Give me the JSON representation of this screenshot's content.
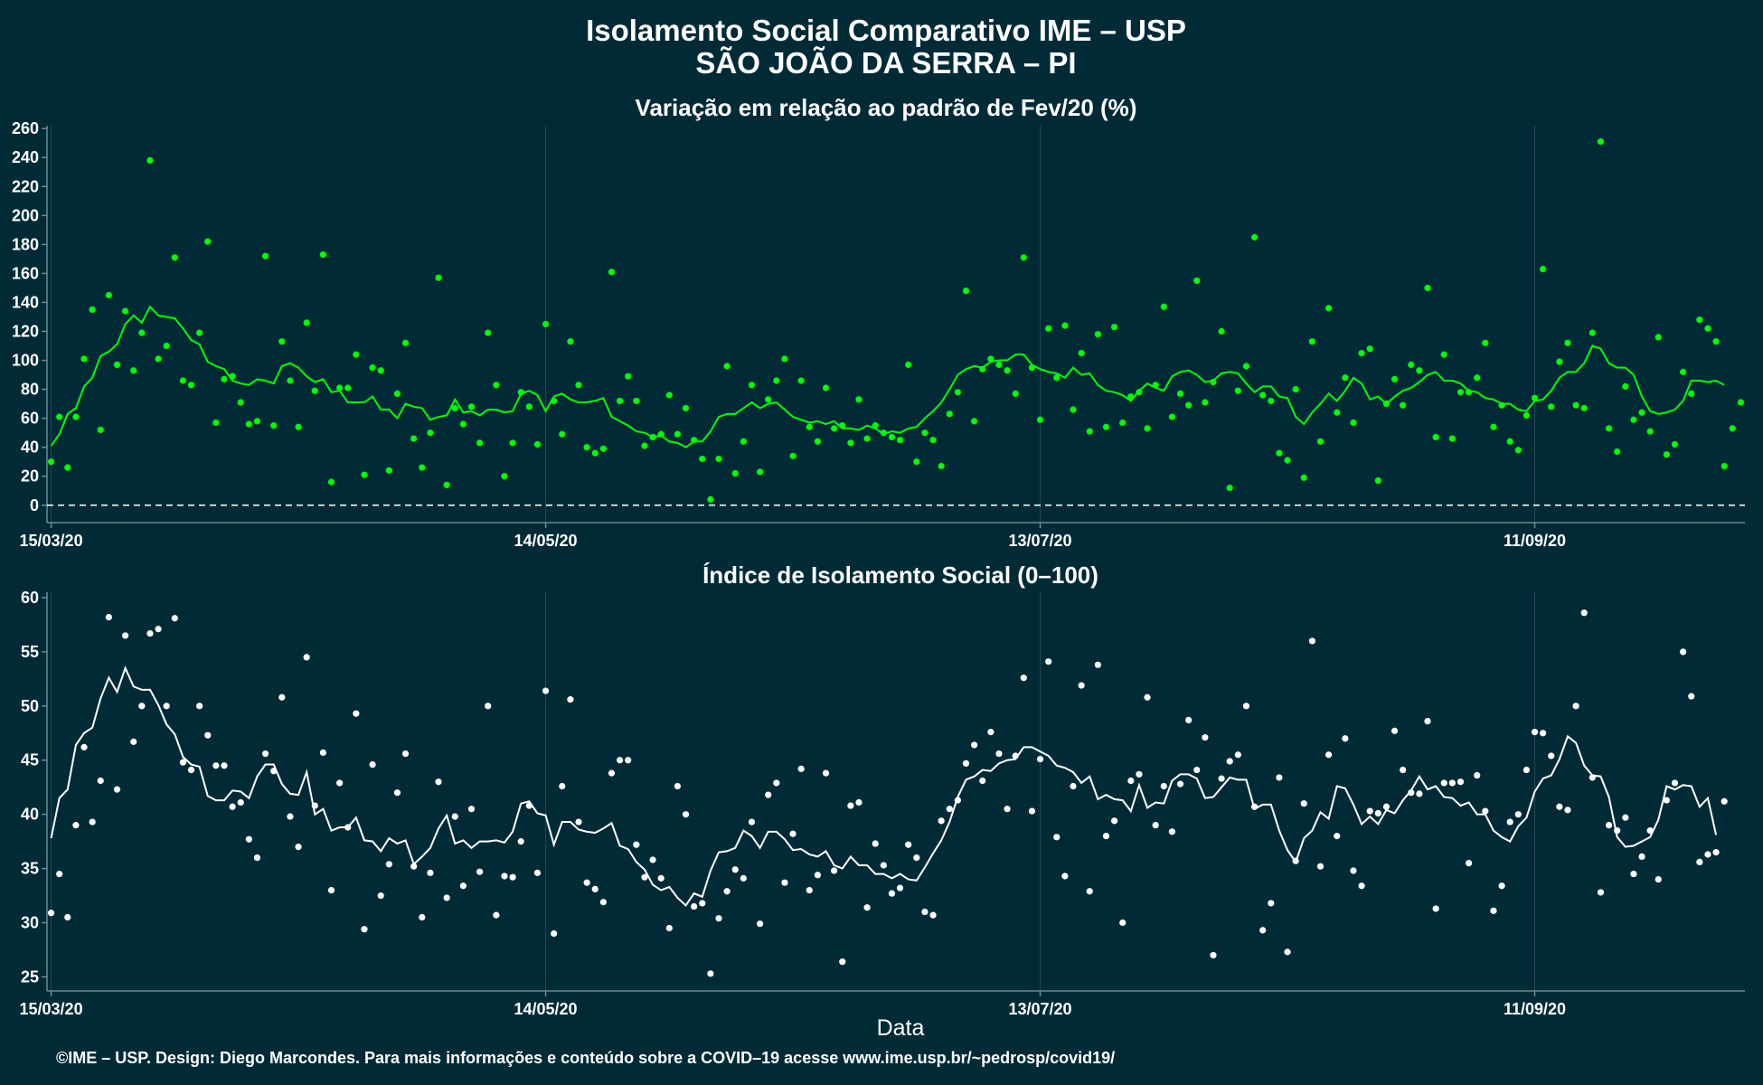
{
  "header": {
    "title_line1": "Isolamento Social Comparativo IME – USP",
    "title_line2": "SÃO JOÃO DA SERRA – PI"
  },
  "caption": "©IME – USP. Design: Diego Marcondes. Para mais informações e conteúdo sobre a COVID–19 acesse www.ime.usp.br/~pedrosp/covid19/",
  "colors": {
    "background": "#002b36",
    "panel1_series": "#00ff00",
    "panel2_series": "#ffffff",
    "axis": "#6a8a94"
  },
  "chart_data": [
    {
      "type": "scatter",
      "title": "Variação em relação ao padrão de Fev/20 (%)",
      "xlabel": "",
      "ylabel": "",
      "x_start_date": "15/03/20",
      "x_tick_labels": [
        "15/03/20",
        "14/05/20",
        "13/07/20",
        "11/09/20"
      ],
      "x_tick_days": [
        0,
        60,
        120,
        180
      ],
      "xlim_days": [
        -0.5,
        205.5
      ],
      "ylim": [
        -12,
        262
      ],
      "y_ticks": [
        0,
        20,
        40,
        60,
        80,
        100,
        120,
        140,
        160,
        180,
        200,
        220,
        240,
        260
      ],
      "reference_line": {
        "y": 0,
        "style": "dashed"
      },
      "series": [
        {
          "kind": "points",
          "values": [
            30,
            61,
            26,
            61,
            101,
            135,
            52,
            145,
            97,
            134,
            93,
            119,
            238,
            101,
            110,
            171,
            86,
            83,
            119,
            182,
            57,
            87,
            89,
            71,
            56,
            58,
            172,
            55,
            113,
            86,
            54,
            126,
            79,
            173,
            16,
            81,
            81,
            104,
            21,
            95,
            93,
            24,
            77,
            112,
            46,
            26,
            50,
            157,
            14,
            67,
            56,
            68,
            43,
            119,
            83,
            20,
            43,
            78,
            68,
            42,
            125,
            72,
            49,
            113,
            83,
            40,
            36,
            39,
            161,
            72,
            89,
            72,
            41,
            47,
            49,
            76,
            49,
            67,
            45,
            32,
            4,
            32,
            96,
            22,
            44,
            83,
            23,
            73,
            86,
            101,
            34,
            86,
            54,
            44,
            81,
            53,
            55,
            43,
            73,
            46,
            55,
            50,
            47,
            45,
            97,
            30,
            50,
            45,
            27,
            63,
            78,
            148,
            58,
            94,
            101,
            97,
            93,
            77,
            171,
            95,
            59,
            122,
            88,
            124,
            66,
            105,
            51,
            118,
            54,
            123,
            57,
            75,
            78,
            53,
            83,
            137,
            61,
            77,
            69,
            155,
            71,
            85,
            120,
            12,
            79,
            96,
            185,
            76,
            72,
            36,
            31,
            80,
            19,
            113,
            44,
            136,
            64,
            88,
            57,
            105,
            108,
            17,
            70,
            87,
            69,
            97,
            93,
            150,
            47,
            104,
            46,
            78,
            78,
            88,
            112,
            54,
            69,
            44,
            38,
            62,
            74,
            163,
            68,
            99,
            112,
            69,
            67,
            119,
            251,
            53,
            37,
            82,
            59,
            64,
            51,
            116,
            35,
            42,
            92,
            77,
            128,
            122,
            113,
            27,
            53,
            71
          ]
        },
        {
          "kind": "line",
          "values": [
            41,
            49,
            63,
            67,
            82,
            88,
            103,
            106,
            111,
            125,
            131,
            126,
            137,
            131,
            130,
            129,
            122,
            114,
            111,
            99,
            96,
            94,
            86,
            84,
            83,
            87,
            86,
            84,
            96,
            98,
            95,
            89,
            85,
            87,
            78,
            79,
            71,
            71,
            71,
            75,
            66,
            66,
            60,
            70,
            68,
            67,
            59,
            61,
            62,
            73,
            64,
            65,
            62,
            66,
            66,
            64,
            65,
            77,
            79,
            76,
            65,
            75,
            77,
            73,
            71,
            71,
            72,
            74,
            61,
            58,
            55,
            51,
            50,
            47,
            48,
            44,
            43,
            40,
            44,
            44,
            51,
            61,
            63,
            63,
            67,
            71,
            67,
            70,
            71,
            66,
            61,
            59,
            57,
            58,
            56,
            58,
            53,
            53,
            52,
            55,
            53,
            49,
            51,
            50,
            53,
            54,
            60,
            65,
            71,
            80,
            90,
            94,
            96,
            95,
            99,
            100,
            100,
            104,
            104,
            97,
            94,
            92,
            91,
            88,
            95,
            90,
            91,
            83,
            79,
            78,
            76,
            72,
            79,
            84,
            81,
            79,
            89,
            92,
            93,
            90,
            85,
            86,
            91,
            92,
            91,
            84,
            78,
            82,
            82,
            75,
            74,
            61,
            56,
            64,
            70,
            77,
            72,
            79,
            88,
            84,
            73,
            75,
            70,
            75,
            79,
            81,
            85,
            90,
            92,
            86,
            86,
            84,
            79,
            78,
            74,
            73,
            70,
            70,
            66,
            65,
            72,
            73,
            79,
            88,
            92,
            92,
            98,
            110,
            108,
            98,
            95,
            95,
            90,
            75,
            65,
            63,
            64,
            66,
            72,
            86,
            86,
            85,
            86,
            83
          ]
        }
      ]
    },
    {
      "type": "scatter",
      "title": "Índice de Isolamento Social (0–100)",
      "xlabel": "Data",
      "ylabel": "",
      "x_start_date": "15/03/20",
      "x_tick_labels": [
        "15/03/20",
        "14/05/20",
        "13/07/20",
        "11/09/20"
      ],
      "x_tick_days": [
        0,
        60,
        120,
        180
      ],
      "xlim_days": [
        -0.5,
        205.5
      ],
      "ylim": [
        23.7,
        60.5
      ],
      "y_ticks": [
        25,
        30,
        35,
        40,
        45,
        50,
        55,
        60
      ],
      "series": [
        {
          "kind": "points",
          "values": [
            30.9,
            34.5,
            30.5,
            39,
            46.2,
            39.3,
            43.1,
            58.2,
            42.3,
            56.5,
            46.7,
            50,
            56.7,
            57.1,
            50,
            58.1,
            44.8,
            44.1,
            50,
            47.3,
            44.5,
            44.5,
            40.7,
            41.1,
            37.7,
            36,
            45.6,
            44,
            50.8,
            39.8,
            37,
            54.5,
            40.8,
            45.7,
            33,
            42.9,
            38.8,
            49.3,
            29.4,
            44.6,
            32.5,
            35.4,
            42,
            45.6,
            35.2,
            30.5,
            34.6,
            43,
            32.3,
            39.8,
            33.4,
            40.5,
            34.7,
            50,
            30.7,
            34.3,
            34.2,
            37.5,
            40.8,
            34.6,
            51.4,
            29,
            42.6,
            50.6,
            39.3,
            33.7,
            33.1,
            31.9,
            43.8,
            45,
            45,
            37.2,
            34.2,
            35.8,
            34.1,
            29.5,
            42.6,
            40,
            31.5,
            31.8,
            25.3,
            30.4,
            32.9,
            34.9,
            34.1,
            39.3,
            29.9,
            41.8,
            42.9,
            33.7,
            38.2,
            44.2,
            33,
            34.4,
            43.8,
            34.8,
            26.4,
            40.8,
            41.1,
            31.4,
            37.3,
            35.3,
            32.7,
            33.2,
            37.2,
            36,
            31,
            30.7,
            39.4,
            40.5,
            41.3,
            44.7,
            46.4,
            43.1,
            47.6,
            45.6,
            40.5,
            45.4,
            52.6,
            40.3,
            45.1,
            54.1,
            37.9,
            34.3,
            42.6,
            51.9,
            32.9,
            53.8,
            38,
            39.4,
            30,
            43.1,
            43.7,
            50.8,
            39,
            42.6,
            38.4,
            42.8,
            48.7,
            44.1,
            47.1,
            27,
            43.3,
            44.9,
            45.5,
            50,
            40.7,
            29.3,
            31.8,
            43.4,
            27.3,
            35.7,
            41,
            56,
            35.2,
            45.5,
            38,
            47,
            34.8,
            33.4,
            40.3,
            40.1,
            40.7,
            47.7,
            44.1,
            42,
            41.9,
            48.6,
            31.3,
            42.9,
            42.9,
            43,
            35.5,
            43.6,
            40.3,
            31.1,
            33.4,
            39.3,
            40,
            44.1,
            47.6,
            47.5,
            45.4,
            40.7,
            40.4,
            50,
            58.6,
            43.4,
            32.8,
            39,
            38.5,
            39.7,
            34.5,
            36.1,
            38.5,
            34,
            41.3,
            42.9,
            55,
            50.9,
            35.6,
            36.3,
            36.5,
            41.2
          ]
        },
        {
          "kind": "line",
          "values": [
            37.8,
            41.5,
            42.3,
            46.4,
            47.5,
            48,
            50.7,
            52.6,
            51.3,
            53.5,
            51.8,
            51.5,
            51.5,
            50.1,
            48.3,
            47.4,
            45.3,
            44.6,
            44.4,
            41.7,
            41.3,
            41.3,
            42.2,
            42.1,
            41.5,
            43.5,
            44.6,
            44.6,
            42.8,
            41.9,
            41.8,
            43.9,
            40,
            40.5,
            38.5,
            38.8,
            38.8,
            39.7,
            37.6,
            37.5,
            36.6,
            37.8,
            37.3,
            37.6,
            35.4,
            36.1,
            36.9,
            38.7,
            39.9,
            37.3,
            37.6,
            36.9,
            37.5,
            37.5,
            37.6,
            37.4,
            38.4,
            41,
            41.2,
            40.1,
            39.9,
            37.2,
            39.3,
            39.3,
            38.6,
            38.4,
            38.3,
            38.7,
            39.2,
            37.1,
            36.8,
            35.6,
            34.9,
            33.5,
            33,
            33.3,
            32.3,
            31.6,
            32.7,
            32.4,
            34.8,
            36.5,
            36.6,
            36.9,
            38.5,
            38,
            36.9,
            38.4,
            38.4,
            37.7,
            36.7,
            36.8,
            36.3,
            36.1,
            36.6,
            35.3,
            35,
            36.1,
            35.3,
            35.3,
            34.5,
            34.5,
            34.1,
            34.5,
            34,
            33.9,
            35.1,
            36.4,
            37.6,
            39.3,
            41.6,
            43.2,
            43.5,
            44.1,
            44,
            44.7,
            45,
            45.1,
            46.2,
            46.2,
            45.8,
            45.4,
            44.5,
            44.3,
            43.9,
            42.9,
            43.5,
            41.4,
            41.8,
            41.4,
            41.3,
            40.3,
            42.7,
            40.6,
            41.1,
            41,
            43.1,
            43.7,
            43.7,
            43.3,
            41.5,
            41.6,
            42.5,
            43.4,
            43.2,
            43.2,
            40.5,
            40.9,
            40.9,
            38.5,
            36.7,
            35.6,
            37.8,
            38.5,
            40.2,
            39.6,
            42.6,
            42.4,
            40.9,
            39.1,
            39.8,
            39.1,
            40.4,
            40.1,
            41.3,
            42.2,
            43.5,
            42.3,
            42.6,
            41.6,
            41.5,
            40.8,
            41.1,
            40,
            40,
            38.5,
            37.9,
            37.5,
            38.9,
            39.7,
            42.1,
            43.3,
            43.6,
            45.1,
            47.2,
            46.6,
            44.5,
            43.6,
            43.5,
            41.6,
            37.9,
            37,
            37.1,
            37.5,
            37.9,
            39.5,
            42.6,
            42.3,
            42.7,
            42.6,
            40.7,
            41.5,
            38.1
          ]
        }
      ]
    }
  ]
}
